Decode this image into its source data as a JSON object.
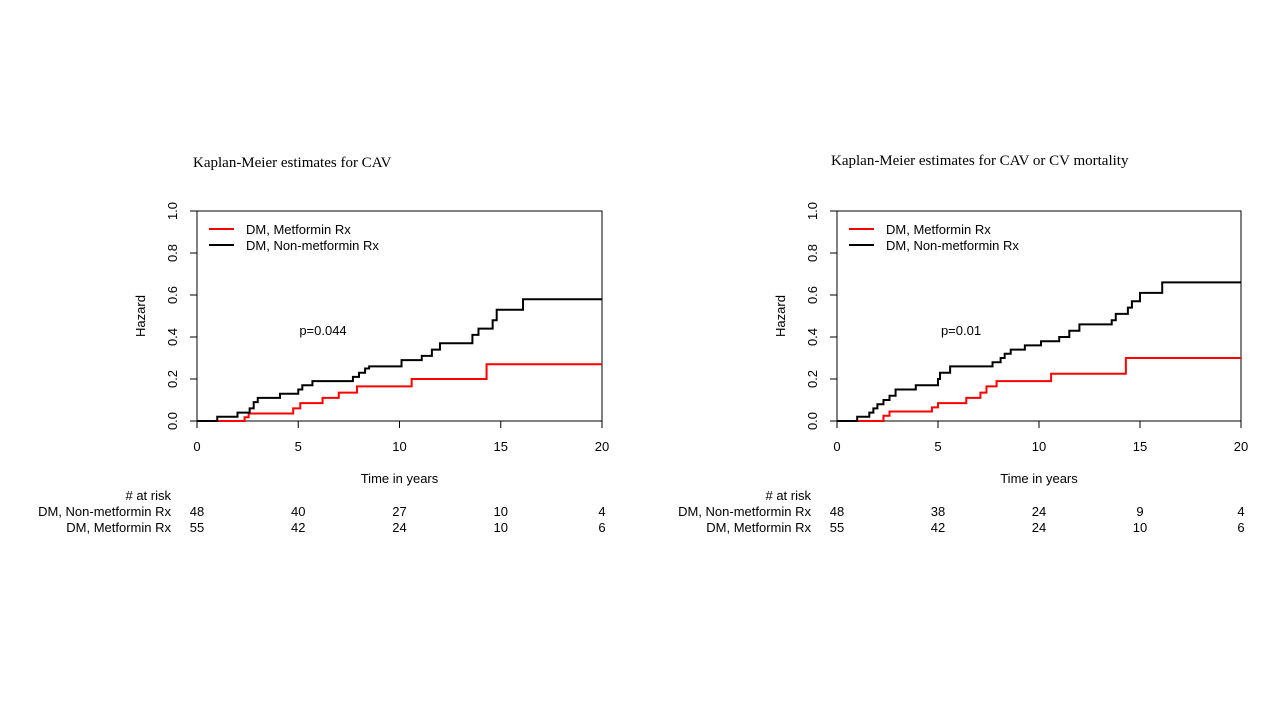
{
  "chart_data": [
    {
      "type": "line",
      "title": "Kaplan-Meier estimates for CAV",
      "xlabel": "Time in years",
      "ylabel": "Hazard",
      "xlim": [
        0,
        20
      ],
      "ylim": [
        0,
        1
      ],
      "x_ticks": [
        0,
        5,
        10,
        15,
        20
      ],
      "y_ticks": [
        0.0,
        0.2,
        0.4,
        0.6,
        0.8,
        1.0
      ],
      "y_tick_labels": [
        "0.0",
        "0.2",
        "0.4",
        "0.6",
        "0.8",
        "1.0"
      ],
      "grid": false,
      "legend_position": "top-left",
      "annotation": "p=0.044",
      "series": [
        {
          "name": "DM, Metformin Rx",
          "color": "#ff0000",
          "x": [
            0,
            2.35,
            2.55,
            4.75,
            5.1,
            6.2,
            7.0,
            7.9,
            10.6,
            14.3,
            20
          ],
          "y": [
            0,
            0.018,
            0.036,
            0.06,
            0.085,
            0.11,
            0.135,
            0.165,
            0.2,
            0.27,
            0.27
          ]
        },
        {
          "name": "DM, Non-metformin Rx",
          "color": "#000000",
          "x": [
            0,
            1.0,
            2.0,
            2.6,
            2.8,
            3.0,
            4.1,
            5.0,
            5.2,
            5.7,
            7.7,
            8.0,
            8.3,
            8.5,
            10.1,
            11.1,
            11.6,
            12.0,
            13.6,
            13.9,
            14.6,
            14.8,
            16.1,
            20
          ],
          "y": [
            0,
            0.02,
            0.04,
            0.06,
            0.09,
            0.11,
            0.13,
            0.15,
            0.17,
            0.19,
            0.21,
            0.23,
            0.25,
            0.26,
            0.29,
            0.31,
            0.34,
            0.37,
            0.41,
            0.44,
            0.48,
            0.53,
            0.58,
            0.58
          ]
        }
      ],
      "risk_table": {
        "header": "# at risk",
        "times": [
          0,
          5,
          10,
          15,
          20
        ],
        "rows": [
          {
            "label": "DM, Non-metformin Rx",
            "values": [
              "48",
              "40",
              "27",
              "10",
              "4"
            ]
          },
          {
            "label": "DM, Metformin Rx",
            "values": [
              "55",
              "42",
              "24",
              "10",
              "6"
            ]
          }
        ]
      }
    },
    {
      "type": "line",
      "title": "Kaplan-Meier estimates for CAV  or CV mortality",
      "xlabel": "Time in years",
      "ylabel": "Hazard",
      "xlim": [
        0,
        20
      ],
      "ylim": [
        0,
        1
      ],
      "x_ticks": [
        0,
        5,
        10,
        15,
        20
      ],
      "y_ticks": [
        0.0,
        0.2,
        0.4,
        0.6,
        0.8,
        1.0
      ],
      "y_tick_labels": [
        "0.0",
        "0.2",
        "0.4",
        "0.6",
        "0.8",
        "1.0"
      ],
      "grid": false,
      "legend_position": "top-left",
      "annotation": "p=0.01",
      "series": [
        {
          "name": "DM, Metformin Rx",
          "color": "#ff0000",
          "x": [
            0,
            2.3,
            2.6,
            4.7,
            5.0,
            6.4,
            7.1,
            7.4,
            7.9,
            10.6,
            14.3,
            20
          ],
          "y": [
            0,
            0.025,
            0.045,
            0.065,
            0.085,
            0.11,
            0.135,
            0.165,
            0.19,
            0.225,
            0.3,
            0.3
          ]
        },
        {
          "name": "DM, Non-metformin Rx",
          "color": "#000000",
          "x": [
            0,
            1.0,
            1.6,
            1.8,
            2.0,
            2.3,
            2.6,
            2.9,
            3.9,
            5.0,
            5.1,
            5.6,
            7.7,
            8.1,
            8.3,
            8.6,
            9.3,
            10.1,
            11.0,
            11.5,
            12.0,
            13.6,
            13.8,
            14.4,
            14.6,
            15.0,
            16.1,
            20
          ],
          "y": [
            0,
            0.02,
            0.04,
            0.06,
            0.08,
            0.1,
            0.12,
            0.15,
            0.17,
            0.2,
            0.23,
            0.26,
            0.28,
            0.3,
            0.32,
            0.34,
            0.36,
            0.38,
            0.4,
            0.43,
            0.46,
            0.48,
            0.51,
            0.54,
            0.57,
            0.61,
            0.66,
            0.66
          ]
        }
      ],
      "risk_table": {
        "header": "# at risk",
        "times": [
          0,
          5,
          10,
          15,
          20
        ],
        "rows": [
          {
            "label": "DM, Non-metformin Rx",
            "values": [
              "48",
              "38",
              "24",
              "9",
              "4"
            ]
          },
          {
            "label": "DM, Metformin Rx",
            "values": [
              "55",
              "42",
              "24",
              "10",
              "6"
            ]
          }
        ]
      }
    }
  ]
}
